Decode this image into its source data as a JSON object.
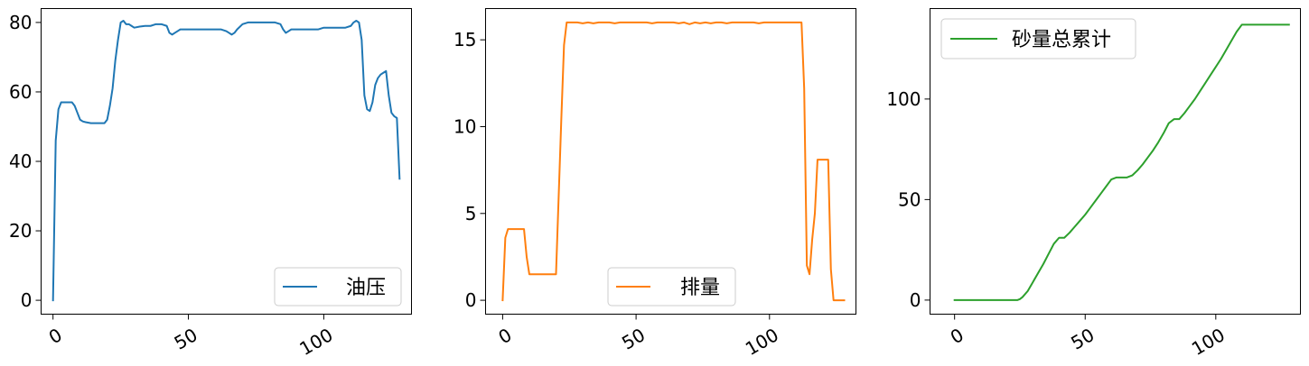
{
  "chart_data": [
    {
      "type": "line",
      "title": "",
      "xlabel": "",
      "ylabel": "",
      "xlim": [
        -4.4,
        132.4
      ],
      "ylim": [
        -4,
        84
      ],
      "xticks": [
        0,
        50,
        100
      ],
      "xtick_labels": [
        "0",
        "50",
        "100"
      ],
      "yticks": [
        0,
        20,
        40,
        60,
        80
      ],
      "ytick_labels": [
        "0",
        "20",
        "40",
        "60",
        "80"
      ],
      "legend_position": "lower-right",
      "series": [
        {
          "name": "油压",
          "color": "#1f77b4",
          "x": [
            0,
            1,
            2,
            3,
            4,
            5,
            6,
            7,
            8,
            9,
            10,
            11,
            12,
            14,
            16,
            18,
            19,
            20,
            21,
            22,
            23,
            24,
            25,
            26,
            27,
            28,
            29,
            30,
            32,
            34,
            36,
            38,
            40,
            42,
            43,
            44,
            45,
            46,
            47,
            48,
            50,
            52,
            54,
            56,
            58,
            60,
            62,
            64,
            65,
            66,
            67,
            68,
            70,
            72,
            74,
            76,
            78,
            80,
            82,
            84,
            85,
            86,
            87,
            88,
            90,
            92,
            94,
            96,
            98,
            100,
            102,
            104,
            106,
            108,
            110,
            111,
            112,
            113,
            114,
            115,
            116,
            117,
            118,
            119,
            120,
            121,
            122,
            123,
            124,
            125,
            126,
            127,
            128
          ],
          "values": [
            0,
            46,
            55,
            57,
            57,
            57,
            57,
            57,
            56,
            54,
            52,
            51.5,
            51.3,
            51,
            51,
            51,
            51,
            52,
            56,
            61,
            69,
            75,
            80,
            80.5,
            79.5,
            79.5,
            79,
            78.5,
            78.8,
            79,
            79,
            79.5,
            79.5,
            79,
            77,
            76.5,
            77,
            77.5,
            78,
            78,
            78,
            78,
            78,
            78,
            78,
            78,
            78,
            77.5,
            77,
            76.5,
            77,
            78,
            79.5,
            80,
            80,
            80,
            80,
            80,
            80,
            79.5,
            78,
            77,
            77.5,
            78,
            78,
            78,
            78,
            78,
            78,
            78.5,
            78.5,
            78.5,
            78.5,
            78.5,
            79,
            80,
            80.5,
            80,
            75,
            59,
            55,
            54.5,
            57,
            62,
            64,
            65,
            65.5,
            66,
            59,
            54,
            53,
            52.5,
            35
          ]
        }
      ]
    },
    {
      "type": "line",
      "title": "",
      "xlabel": "",
      "ylabel": "",
      "xlim": [
        -6.4,
        132.4
      ],
      "ylim": [
        -0.8,
        16.8
      ],
      "xticks": [
        0,
        50,
        100
      ],
      "xtick_labels": [
        "0",
        "50",
        "100"
      ],
      "yticks": [
        0,
        5,
        10,
        15
      ],
      "ytick_labels": [
        "0",
        "5",
        "10",
        "15"
      ],
      "legend_position": "lower-center",
      "series": [
        {
          "name": "排量",
          "color": "#ff7f0e",
          "x": [
            0,
            1,
            2,
            3,
            4,
            5,
            6,
            7,
            8,
            9,
            10,
            11,
            12,
            14,
            16,
            18,
            20,
            21,
            22,
            23,
            24,
            25,
            26,
            28,
            30,
            32,
            34,
            36,
            38,
            40,
            42,
            44,
            46,
            48,
            50,
            52,
            54,
            56,
            58,
            60,
            62,
            64,
            66,
            68,
            70,
            72,
            74,
            76,
            78,
            80,
            82,
            84,
            86,
            88,
            90,
            92,
            94,
            96,
            98,
            100,
            102,
            104,
            106,
            108,
            110,
            111,
            112,
            113,
            114,
            115,
            116,
            117,
            118,
            119,
            120,
            121,
            122,
            123,
            124,
            125,
            126,
            127,
            128
          ],
          "values": [
            0,
            3.6,
            4.1,
            4.1,
            4.1,
            4.1,
            4.1,
            4.1,
            4.1,
            2.5,
            1.5,
            1.5,
            1.5,
            1.5,
            1.5,
            1.5,
            1.5,
            6,
            10.5,
            14.7,
            16,
            16,
            16,
            16,
            15.95,
            16,
            15.95,
            16,
            16,
            16,
            15.95,
            16,
            16,
            16,
            16,
            16,
            16,
            15.95,
            16,
            16,
            16,
            16,
            15.95,
            16,
            15.9,
            16,
            15.95,
            16,
            15.95,
            16,
            16,
            15.95,
            16,
            16,
            16,
            16,
            16,
            15.95,
            16,
            16,
            16,
            16,
            16,
            16,
            16,
            16,
            16,
            12.2,
            2,
            1.5,
            3.5,
            5,
            8.1,
            8.1,
            8.1,
            8.1,
            8.1,
            1.8,
            0,
            0,
            0,
            0,
            0
          ]
        }
      ]
    },
    {
      "type": "line",
      "title": "",
      "xlabel": "",
      "ylabel": "",
      "xlim": [
        -9.4,
        132.4
      ],
      "ylim": [
        -7,
        145
      ],
      "xticks": [
        0,
        50,
        100
      ],
      "xtick_labels": [
        "0",
        "50",
        "100"
      ],
      "yticks": [
        0,
        50,
        100
      ],
      "ytick_labels": [
        "0",
        "50",
        "100"
      ],
      "legend_position": "upper-left",
      "series": [
        {
          "name": "砂量总累计",
          "color": "#2ca02c",
          "x": [
            0,
            5,
            10,
            15,
            20,
            22,
            24,
            25,
            26,
            28,
            30,
            32,
            34,
            36,
            38,
            40,
            42,
            44,
            46,
            48,
            50,
            52,
            54,
            56,
            58,
            60,
            62,
            64,
            66,
            68,
            70,
            72,
            74,
            76,
            78,
            80,
            82,
            84,
            86,
            88,
            90,
            92,
            94,
            96,
            98,
            100,
            102,
            104,
            106,
            108,
            110,
            115,
            120,
            125,
            128
          ],
          "values": [
            0,
            0,
            0,
            0,
            0,
            0,
            0,
            0.5,
            1.5,
            4.5,
            9,
            13.5,
            18,
            23,
            28,
            31,
            31,
            33.5,
            36.5,
            39.5,
            42.5,
            46,
            49.5,
            53,
            56.5,
            60,
            61,
            61,
            61,
            62,
            64.5,
            67.5,
            71,
            74.5,
            78.5,
            83,
            88,
            90,
            90,
            93,
            96.5,
            100,
            104,
            108,
            112,
            116,
            120,
            124.5,
            129,
            133.5,
            137,
            137,
            137,
            137,
            137
          ]
        }
      ]
    }
  ]
}
